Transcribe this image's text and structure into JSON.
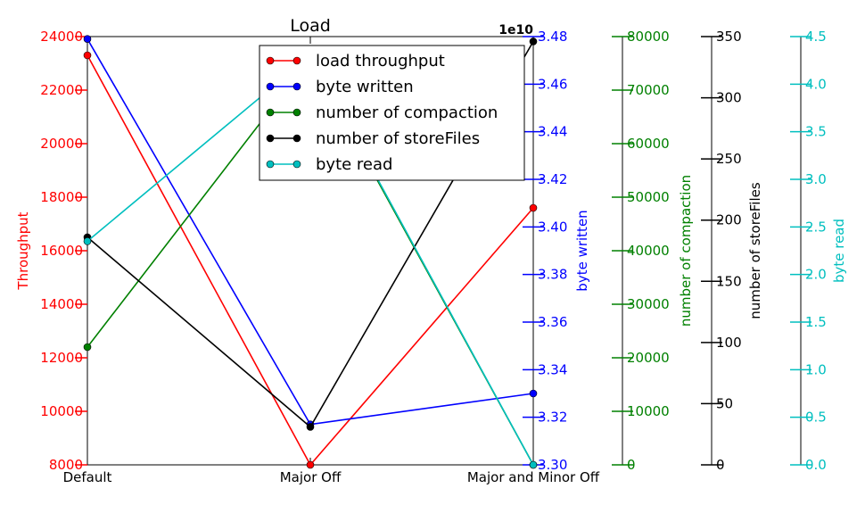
{
  "chart_data": {
    "type": "line",
    "title": "Load",
    "categories": [
      "Default",
      "Major Off",
      "Major and Minor Off"
    ],
    "axes": [
      {
        "id": "throughput",
        "label": "Throughput",
        "color": "#ff0000",
        "min": 8000,
        "max": 24000,
        "ticks": [
          "8000",
          "10000",
          "12000",
          "14000",
          "16000",
          "18000",
          "20000",
          "22000",
          "24000"
        ],
        "offset_label": ""
      },
      {
        "id": "bytes_written",
        "label": "byte written",
        "color": "#0000ff",
        "min": 3.3,
        "max": 3.48,
        "ticks": [
          "3.30",
          "3.32",
          "3.34",
          "3.36",
          "3.38",
          "3.40",
          "3.42",
          "3.44",
          "3.46",
          "3.48"
        ],
        "offset_label": "1e10"
      },
      {
        "id": "compaction",
        "label": "number of compaction",
        "color": "#008000",
        "min": 0,
        "max": 80000,
        "ticks": [
          "0",
          "10000",
          "20000",
          "30000",
          "40000",
          "50000",
          "60000",
          "70000",
          "80000"
        ],
        "offset_label": ""
      },
      {
        "id": "storefiles",
        "label": "number of storeFiles",
        "color": "#000000",
        "min": 0,
        "max": 350,
        "ticks": [
          "0",
          "50",
          "100",
          "150",
          "200",
          "250",
          "300",
          "350"
        ],
        "offset_label": ""
      },
      {
        "id": "bytes_read",
        "label": "byte read",
        "color": "#00bfbf",
        "min": 0.0,
        "max": 4.5,
        "ticks": [
          "0.0",
          "0.5",
          "1.0",
          "1.5",
          "2.0",
          "2.5",
          "3.0",
          "3.5",
          "4.0",
          "4.5"
        ],
        "offset_label": ""
      }
    ],
    "series": [
      {
        "name": "load throughput",
        "axis": "throughput",
        "color": "#ff0000",
        "values": [
          23300,
          8000,
          17600
        ]
      },
      {
        "name": "byte written",
        "axis": "bytes_written",
        "color": "#0000ff",
        "values": [
          3.479,
          3.317,
          3.33
        ]
      },
      {
        "name": "number of compaction",
        "axis": "compaction",
        "color": "#008000",
        "values": [
          22000,
          76000,
          0
        ]
      },
      {
        "name": "number of storeFiles",
        "axis": "storefiles",
        "color": "#000000",
        "values": [
          186,
          31,
          346
        ]
      },
      {
        "name": "byte read",
        "axis": "bytes_read",
        "color": "#00bfbf",
        "values": [
          2.35,
          4.3,
          0.0
        ]
      }
    ],
    "legend_position": "top-center",
    "grid": false
  }
}
